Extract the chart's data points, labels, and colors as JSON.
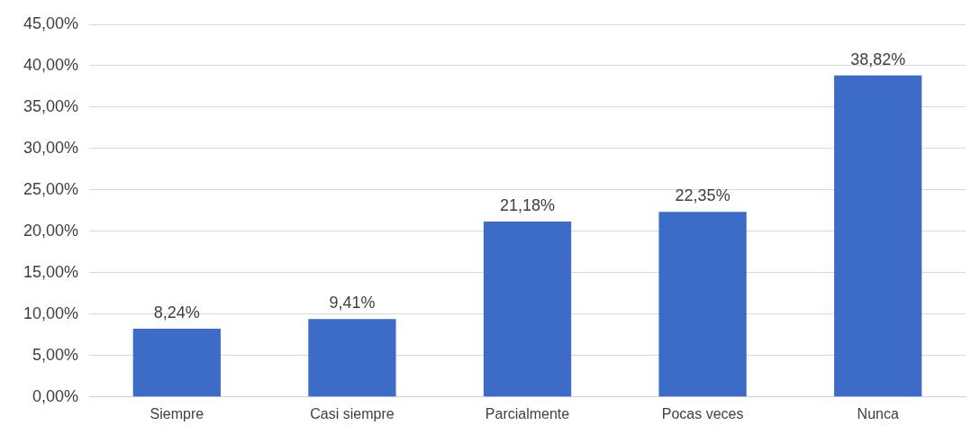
{
  "chart_data": {
    "type": "bar",
    "categories": [
      "Siempre",
      "Casi siempre",
      "Parcialmente",
      "Pocas veces",
      "Nunca"
    ],
    "values": [
      8.24,
      9.41,
      21.18,
      22.35,
      38.82
    ],
    "value_labels": [
      "8,24%",
      "9,41%",
      "21,18%",
      "22,35%",
      "38,82%"
    ],
    "color": "#3d6cc8",
    "ylim": [
      0,
      45
    ],
    "yticks": [
      {
        "value": 0,
        "label": "0,00%"
      },
      {
        "value": 5,
        "label": "5,00%"
      },
      {
        "value": 10,
        "label": "10,00%"
      },
      {
        "value": 15,
        "label": "15,00%"
      },
      {
        "value": 20,
        "label": "20,00%"
      },
      {
        "value": 25,
        "label": "25,00%"
      },
      {
        "value": 30,
        "label": "30,00%"
      },
      {
        "value": 35,
        "label": "35,00%"
      },
      {
        "value": 40,
        "label": "40,00%"
      },
      {
        "value": 45,
        "label": "45,00%"
      }
    ],
    "grid": "y",
    "legend": false
  }
}
